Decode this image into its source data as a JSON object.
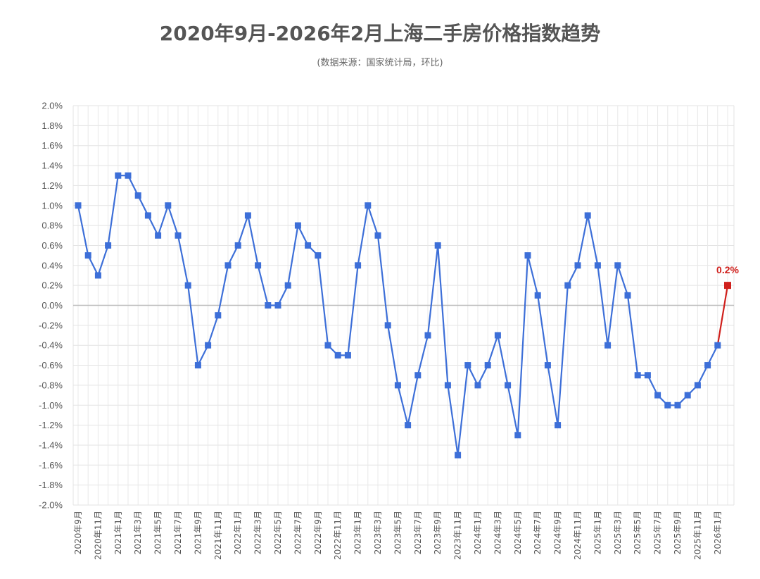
{
  "chart_data": {
    "type": "line",
    "title": "2020年9月-2026年2月上海二手房价格指数趋势",
    "subtitle": "(数据来源：国家统计局，环比)",
    "y_unit": "%",
    "ylim": [
      -2.0,
      2.0
    ],
    "y_ticks": [
      "2.0%",
      "1.8%",
      "1.6%",
      "1.4%",
      "1.2%",
      "1.0%",
      "0.8%",
      "0.6%",
      "0.4%",
      "0.2%",
      "0.0%",
      "-0.2%",
      "-0.4%",
      "-0.6%",
      "-0.8%",
      "-1.0%",
      "-1.2%",
      "-1.4%",
      "-1.6%",
      "-1.8%",
      "-2.0%"
    ],
    "x_tick_labels": [
      "2020年9月",
      "2020年11月",
      "2021年1月",
      "2021年3月",
      "2021年5月",
      "2021年7月",
      "2021年9月",
      "2021年11月",
      "2022年1月",
      "2022年3月",
      "2022年5月",
      "2022年7月",
      "2022年9月",
      "2022年11月",
      "2023年1月",
      "2023年3月",
      "2023年5月",
      "2023年7月",
      "2023年9月",
      "2023年11月",
      "2024年1月",
      "2024年3月",
      "2024年5月",
      "2024年7月",
      "2024年9月",
      "2024年11月",
      "2025年1月",
      "2025年3月",
      "2025年5月",
      "2025年7月",
      "2025年9月",
      "2025年11月",
      "2026年1月"
    ],
    "x_start": "2020-09",
    "x_end": "2026-02",
    "grid": true,
    "series": [
      {
        "color": "#3d6fd8",
        "values": [
          1.0,
          0.5,
          0.3,
          0.6,
          1.3,
          1.3,
          1.1,
          0.9,
          0.7,
          1.0,
          0.7,
          0.2,
          -0.6,
          -0.4,
          -0.1,
          0.4,
          0.6,
          0.9,
          0.4,
          0.0,
          0.0,
          0.2,
          0.8,
          0.6,
          0.5,
          -0.4,
          -0.5,
          -0.5,
          0.4,
          1.0,
          0.7,
          -0.2,
          -0.8,
          -1.2,
          -0.7,
          -0.3,
          0.6,
          -0.8,
          -1.5,
          -0.6,
          -0.8,
          -0.6,
          -0.3,
          -0.8,
          -1.3,
          0.5,
          0.1,
          -0.6,
          -1.2,
          0.2,
          0.4,
          0.9,
          0.4,
          -0.4,
          0.4,
          0.1,
          -0.7,
          -0.7,
          -0.9,
          -1.0,
          -1.0,
          -0.9,
          -0.8,
          -0.6,
          -0.4,
          0.2
        ]
      }
    ],
    "highlight": {
      "color": "#d0201c",
      "label": "0.2%",
      "value": 0.2
    }
  }
}
